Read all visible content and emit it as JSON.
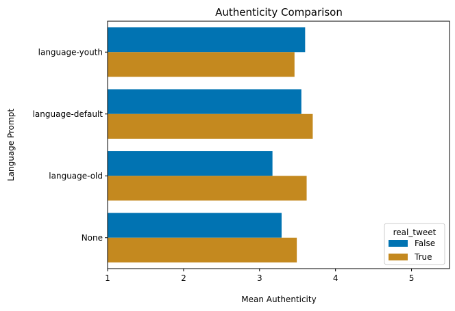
{
  "chart_data": {
    "type": "bar",
    "orientation": "horizontal",
    "title": "Authenticity Comparison",
    "xlabel": "Mean Authenticity",
    "ylabel": "Language Prompt",
    "categories": [
      "language-youth",
      "language-default",
      "language-old",
      "None"
    ],
    "xlim": [
      1,
      5.5
    ],
    "xticks": [
      1,
      2,
      3,
      4,
      5
    ],
    "grid": false,
    "legend": {
      "title": "real_tweet",
      "placement": "lower-right"
    },
    "series": [
      {
        "name": "False",
        "color": "#0173b2",
        "values": [
          3.6,
          3.55,
          3.17,
          3.29
        ]
      },
      {
        "name": "True",
        "color": "#c4891f",
        "values": [
          3.46,
          3.7,
          3.62,
          3.49
        ]
      }
    ]
  }
}
